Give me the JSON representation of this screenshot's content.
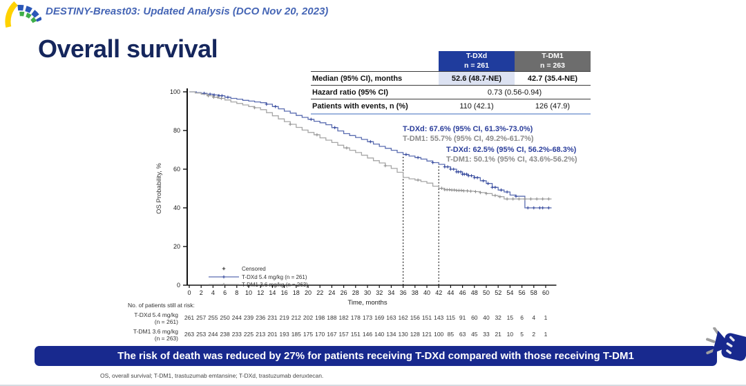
{
  "header": {
    "study_title": "DESTINY-Breast03: Updated Analysis (DCO Nov 20, 2023)"
  },
  "page_title": "Overall survival",
  "summary_table": {
    "col_headers": [
      {
        "line1": "T-DXd",
        "line2": "n = 261"
      },
      {
        "line1": "T-DM1",
        "line2": "n = 263"
      }
    ],
    "rows": [
      {
        "label": "Median (95% CI), months",
        "values": [
          "52.6 (48.7-NE)",
          "42.7 (35.4-NE)"
        ]
      },
      {
        "label": "Hazard ratio (95% CI)",
        "span_value": "0.73 (0.56-0.94)"
      },
      {
        "label": "Patients with events, n (%)",
        "values": [
          "110 (42.1)",
          "126 (47.9)"
        ]
      }
    ]
  },
  "annotations": {
    "landmark36_tdxd": "T-DXd: 67.6% (95% CI, 61.3%-73.0%)",
    "landmark36_tdm1": "T-DM1: 55.7% (95% CI, 49.2%-61.7%)",
    "landmark42_tdxd": "T-DXd: 62.5% (95% CI, 56.2%-68.3%)",
    "landmark42_tdm1": "T-DM1: 50.1% (95% CI, 43.6%-56.2%)"
  },
  "chart_data": {
    "type": "line",
    "subtype": "kaplan-meier-step",
    "xlabel": "Time, months",
    "ylabel": "OS Probability, %",
    "xlim": [
      0,
      62
    ],
    "ylim": [
      0,
      100
    ],
    "xticks": [
      0,
      2,
      4,
      6,
      8,
      10,
      12,
      14,
      16,
      18,
      20,
      22,
      24,
      26,
      28,
      30,
      32,
      34,
      36,
      38,
      40,
      42,
      44,
      46,
      48,
      50,
      52,
      54,
      56,
      58,
      60
    ],
    "yticks": [
      0,
      20,
      40,
      60,
      80,
      100
    ],
    "reference_lines_x": [
      36,
      42
    ],
    "legend": {
      "censored_label": "Censored",
      "position": "inside-bottom-left"
    },
    "series": [
      {
        "name": "T-DXd 5.4 mg/kg (n = 261)",
        "color": "#5a6cb0",
        "censor_color": "#2b3f97",
        "steps": [
          [
            0,
            100
          ],
          [
            1.2,
            99.6
          ],
          [
            2,
            99.2
          ],
          [
            3,
            98.8
          ],
          [
            4,
            98.4
          ],
          [
            5,
            98.0
          ],
          [
            6,
            97.2
          ],
          [
            7,
            96.6
          ],
          [
            8,
            96.2
          ],
          [
            9,
            95.6
          ],
          [
            10,
            95.2
          ],
          [
            11,
            94.8
          ],
          [
            12,
            94.4
          ],
          [
            13,
            93.6
          ],
          [
            14,
            92.4
          ],
          [
            15,
            91.2
          ],
          [
            16,
            90.0
          ],
          [
            17,
            89.0
          ],
          [
            18,
            87.8
          ],
          [
            19,
            86.8
          ],
          [
            20,
            85.8
          ],
          [
            21,
            84.8
          ],
          [
            22,
            84.0
          ],
          [
            23,
            83.0
          ],
          [
            24,
            81.5
          ],
          [
            25,
            79.8
          ],
          [
            26,
            78.4
          ],
          [
            27,
            77.4
          ],
          [
            28,
            76.4
          ],
          [
            29,
            75.4
          ],
          [
            30,
            74.2
          ],
          [
            31,
            73.0
          ],
          [
            32,
            71.8
          ],
          [
            33,
            70.8
          ],
          [
            34,
            69.8
          ],
          [
            35,
            68.6
          ],
          [
            36,
            67.6
          ],
          [
            37,
            66.8
          ],
          [
            38,
            66.0
          ],
          [
            39,
            65.2
          ],
          [
            40,
            64.2
          ],
          [
            41,
            63.4
          ],
          [
            42,
            62.5
          ],
          [
            43,
            61.2
          ],
          [
            44,
            60.0
          ],
          [
            45,
            58.6
          ],
          [
            46,
            57.4
          ],
          [
            47,
            56.6
          ],
          [
            48,
            55.6
          ],
          [
            49,
            54.0
          ],
          [
            50,
            52.6
          ],
          [
            51,
            50.6
          ],
          [
            52,
            49.2
          ],
          [
            53,
            48.2
          ],
          [
            54,
            46.6
          ],
          [
            55,
            46.0
          ],
          [
            56.5,
            40.0
          ],
          [
            61,
            40.0
          ]
        ],
        "censor_times": [
          2.5,
          3.5,
          4.2,
          5,
          5.5,
          6.5,
          13,
          14.5,
          20.5,
          24.5,
          30.5,
          36.5,
          38.5,
          41,
          43,
          43.5,
          44,
          44.5,
          45,
          45.3,
          45.7,
          46,
          46.3,
          46.7,
          47,
          47.5,
          48,
          48.5,
          49.5,
          50.3,
          51,
          51.5,
          52.5,
          53.5,
          55,
          57,
          58,
          59,
          59.5,
          60.5
        ]
      },
      {
        "name": "T-DM1 3.6 mg/kg (n = 263)",
        "color": "#a6a6a6",
        "censor_color": "#8c8c8c",
        "steps": [
          [
            0,
            100
          ],
          [
            1,
            99.4
          ],
          [
            2,
            98.8
          ],
          [
            3,
            98.0
          ],
          [
            4,
            97.2
          ],
          [
            5,
            96.6
          ],
          [
            6,
            95.8
          ],
          [
            7,
            94.8
          ],
          [
            8,
            94.0
          ],
          [
            9,
            93.2
          ],
          [
            10,
            92.4
          ],
          [
            11,
            91.8
          ],
          [
            12,
            90.8
          ],
          [
            13,
            89.2
          ],
          [
            14,
            87.6
          ],
          [
            15,
            86.0
          ],
          [
            16,
            84.6
          ],
          [
            17,
            83.2
          ],
          [
            18,
            81.6
          ],
          [
            19,
            80.2
          ],
          [
            20,
            79.0
          ],
          [
            21,
            77.8
          ],
          [
            22,
            76.2
          ],
          [
            23,
            75.0
          ],
          [
            24,
            73.8
          ],
          [
            25,
            72.4
          ],
          [
            26,
            71.0
          ],
          [
            27,
            69.8
          ],
          [
            28,
            68.6
          ],
          [
            29,
            67.2
          ],
          [
            30,
            65.8
          ],
          [
            31,
            64.4
          ],
          [
            32,
            63.2
          ],
          [
            33,
            61.8
          ],
          [
            34,
            60.4
          ],
          [
            35,
            58.4
          ],
          [
            36,
            55.7
          ],
          [
            37,
            55.0
          ],
          [
            38,
            54.4
          ],
          [
            39,
            53.6
          ],
          [
            40,
            52.8
          ],
          [
            41,
            51.2
          ],
          [
            42,
            50.1
          ],
          [
            43,
            49.4
          ],
          [
            44,
            49.2
          ],
          [
            45,
            49.0
          ],
          [
            46,
            48.8
          ],
          [
            47,
            48.6
          ],
          [
            48,
            48.4
          ],
          [
            49,
            47.9
          ],
          [
            50,
            47.4
          ],
          [
            51,
            46.4
          ],
          [
            52,
            45.8
          ],
          [
            53,
            44.6
          ],
          [
            61,
            44.6
          ]
        ],
        "censor_times": [
          3.2,
          4.1,
          4.8,
          5.4,
          11,
          17,
          21.5,
          26.5,
          33,
          38.5,
          42.5,
          43,
          43.4,
          43.8,
          44.2,
          44.6,
          45,
          45.4,
          45.8,
          46.2,
          46.8,
          47.4,
          48.2,
          49,
          50,
          51.5,
          52.3,
          53.5,
          54.5,
          55.5,
          56.5,
          57.5,
          58.5,
          59.5,
          60.5
        ]
      }
    ]
  },
  "at_risk": {
    "title": "No. of patients still at risk:",
    "times": [
      0,
      2,
      4,
      6,
      8,
      10,
      12,
      14,
      16,
      18,
      20,
      22,
      24,
      26,
      28,
      30,
      32,
      34,
      36,
      38,
      40,
      42,
      44,
      46,
      48,
      50,
      52,
      54,
      56,
      58,
      60
    ],
    "rows": [
      {
        "label_line1": "T-DXd 5.4 mg/kg",
        "label_line2": "(n = 261)",
        "counts": [
          261,
          257,
          255,
          250,
          244,
          239,
          236,
          231,
          219,
          212,
          202,
          198,
          188,
          182,
          178,
          173,
          169,
          163,
          162,
          156,
          151,
          143,
          115,
          91,
          60,
          40,
          32,
          15,
          6,
          4,
          1
        ]
      },
      {
        "label_line1": "T-DM1 3.6 mg/kg",
        "label_line2": "(n = 263)",
        "counts": [
          263,
          253,
          244,
          238,
          233,
          225,
          213,
          201,
          193,
          185,
          175,
          170,
          167,
          157,
          151,
          146,
          140,
          134,
          130,
          128,
          121,
          100,
          85,
          63,
          45,
          33,
          21,
          10,
          5,
          2,
          1
        ]
      }
    ]
  },
  "banner": {
    "text": "The risk of death was reduced by 27% for patients receiving T-DXd compared with those receiving T-DM1"
  },
  "footnote": "OS, overall survival; T-DM1, trastuzumab  emtansine; T-DXd, trastuzumab  deruxtecan.",
  "colors": {
    "banner_blue": "#18298e",
    "header_blue": "#1f3c9d",
    "header_gray": "#6d6d6d",
    "median_highlight": "#dce2f2",
    "title_navy": "#15265c",
    "study_title_blue": "#4565b5",
    "annotation_blue": "#2b3e9b",
    "annotation_gray": "#8a8a8a",
    "table_rule_blue": "#9db4de"
  }
}
